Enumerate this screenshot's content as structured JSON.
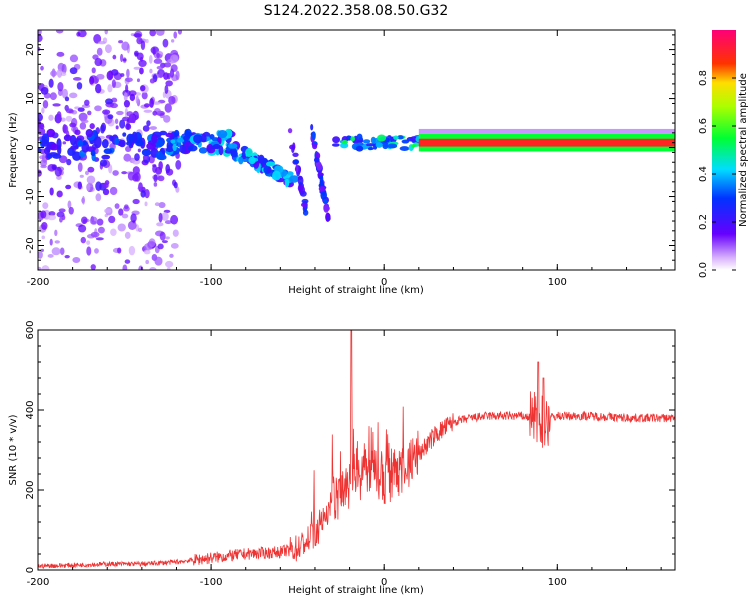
{
  "title": "S124.2022.358.08.50.G32",
  "chart_data": [
    {
      "type": "heatmap",
      "title": "S124.2022.358.08.50.G32",
      "xlabel": "Height of straight line (km)",
      "ylabel": "Frequency (Hz)",
      "xlim": [
        -200,
        168
      ],
      "ylim": [
        -25,
        24
      ],
      "x_ticks": [
        "-200",
        "-100",
        "0",
        "100"
      ],
      "y_ticks": [
        "20",
        "10",
        "0",
        "-10",
        "-20"
      ],
      "colorbar": {
        "label": "Normalized spectral amplitude",
        "range": [
          0,
          1
        ],
        "ticks": [
          "0.0",
          "0.2",
          "0.4",
          "0.6",
          "0.8"
        ],
        "colormap": "rainbow (white-violet-blue-cyan-green-yellow-red-magenta)"
      },
      "features": [
        {
          "x_range": [
            -200,
            -118
          ],
          "freq_hz": 0,
          "level": "noisy, scattered power across all frequencies"
        },
        {
          "x_range": [
            -125,
            -88
          ],
          "freq_hz": 1,
          "level": 0.35
        },
        {
          "x_range": [
            -88,
            -52
          ],
          "freq_hz_start": -1,
          "freq_hz_end": -6,
          "level": 0.3
        },
        {
          "x_range": [
            -40,
            -32
          ],
          "freq_hz_start": 3,
          "freq_hz_end": -15,
          "level": 0.25
        },
        {
          "x_range": [
            -28,
            0
          ],
          "freq_hz": 1.5,
          "level": 0.45
        },
        {
          "x_range": [
            0,
            20
          ],
          "freq_hz": 0.5,
          "level": 0.5
        },
        {
          "x_range": [
            20,
            168
          ],
          "freq_hz": 1,
          "level": 0.95
        }
      ]
    },
    {
      "type": "line",
      "xlabel": "Height of straight line (km)",
      "ylabel": "SNR (10 * v/v)",
      "xlim": [
        -200,
        168
      ],
      "ylim": [
        0,
        600
      ],
      "x_ticks": [
        "-200",
        "-100",
        "0",
        "100"
      ],
      "y_ticks": [
        "0",
        "200",
        "400",
        "600"
      ],
      "color": "#ee3333",
      "x": [
        -200,
        -180,
        -160,
        -140,
        -120,
        -100,
        -80,
        -60,
        -50,
        -40,
        -30,
        -20,
        -10,
        0,
        10,
        20,
        30,
        40,
        50,
        60,
        70,
        80,
        85,
        90,
        95,
        100,
        120,
        140,
        168
      ],
      "y": [
        10,
        12,
        15,
        15,
        20,
        30,
        40,
        45,
        55,
        90,
        170,
        220,
        250,
        220,
        250,
        290,
        340,
        370,
        380,
        385,
        385,
        385,
        380,
        370,
        380,
        385,
        385,
        380,
        380
      ],
      "spikes": [
        {
          "x": -19,
          "y": 600
        },
        {
          "x": 89,
          "y": 520
        },
        {
          "x": 92,
          "y": 480
        }
      ]
    }
  ]
}
